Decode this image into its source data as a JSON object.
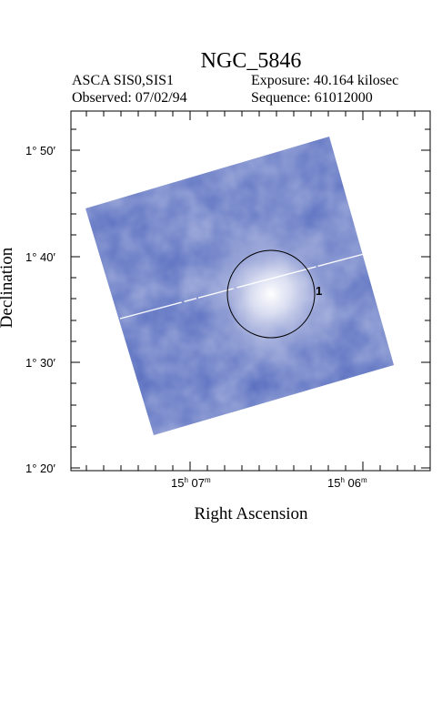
{
  "header": {
    "title": "NGC_5846",
    "instrument": "ASCA SIS0,SIS1",
    "exposure": "Exposure: 40.164 kilosec",
    "observed": "Observed: 07/02/94",
    "sequence": "Sequence: 61012000"
  },
  "axes": {
    "xlabel": "Right Ascension",
    "ylabel": "Declination",
    "x_ticks": [
      {
        "h": "15",
        "m": "07"
      },
      {
        "h": "15",
        "m": "06"
      }
    ],
    "y_ticks": [
      "1° 50′",
      "1° 40′",
      "1° 30′",
      "1° 20′"
    ]
  },
  "image": {
    "source_region_label": "1",
    "colors": {
      "base": "#5a6fc0",
      "highlight": "#eef0f8",
      "frame": "#000000"
    }
  }
}
